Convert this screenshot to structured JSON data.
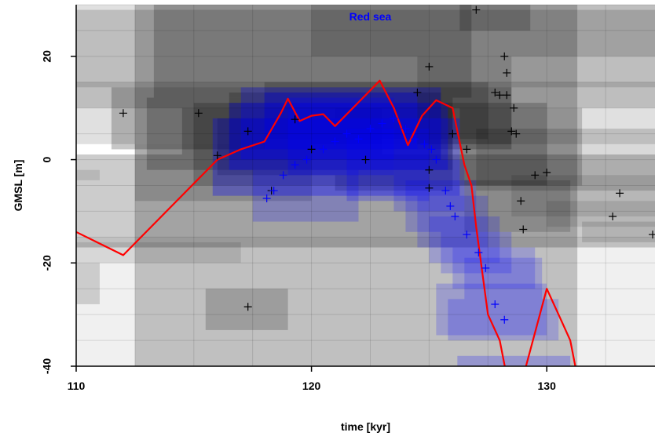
{
  "chart_data": {
    "type": "line",
    "title": "",
    "xlabel": "time [kyr]",
    "ylabel": "GMSL [m]",
    "xlim": [
      110,
      134.6
    ],
    "ylim": [
      -40,
      30
    ],
    "x_ticks": [
      110,
      120,
      130
    ],
    "y_ticks": [
      -40,
      -20,
      0,
      20
    ],
    "grid": true,
    "annotations": [
      {
        "text": "Red sea",
        "x": 122.5,
        "y": 27,
        "color": "#0000ff"
      }
    ],
    "series": [
      {
        "style": "line",
        "color": "#ff0000",
        "x": [
          110,
          112,
          116,
          117,
          118,
          118.7,
          119,
          119.5,
          120,
          120.5,
          121,
          122.3,
          122.9,
          123.5,
          124.1,
          124.7,
          125.3,
          126,
          126.5,
          126.8,
          127,
          127.5,
          128,
          128.3,
          129,
          130,
          130.5,
          131,
          131.3
        ],
        "y": [
          -14,
          -18.5,
          0,
          2,
          3.5,
          9,
          11.8,
          7.5,
          8.5,
          8.8,
          6.5,
          12.5,
          15.3,
          10,
          2.8,
          8.5,
          11.5,
          10,
          -1,
          -5,
          -13,
          -30,
          -35,
          -42,
          -42,
          -25,
          -30,
          -35,
          -42
        ]
      },
      {
        "style": "markers",
        "color": "#000000",
        "x": [
          112,
          115.2,
          116,
          117.3,
          118.3,
          119.3,
          120,
          122.3,
          124.5,
          125,
          125,
          125,
          126,
          126.6,
          127,
          127.8,
          128,
          128.2,
          128.3,
          128.3,
          128.5,
          128.6,
          128.7,
          128.9,
          129,
          129.5,
          130,
          132.8,
          133.1,
          134.5,
          117.3
        ],
        "y": [
          9,
          9,
          0.8,
          5.5,
          -6,
          7.8,
          2,
          0,
          13,
          18,
          -2,
          -5.5,
          5,
          2,
          29,
          13,
          12.5,
          20,
          16.8,
          12.5,
          5.5,
          10,
          5,
          -8,
          -13.5,
          -3,
          -2.5,
          -11,
          -6.5,
          -14.5,
          -28.5
        ]
      },
      {
        "style": "markers",
        "color": "#0000ff",
        "x": [
          118.1,
          118.4,
          118.8,
          119.3,
          119.8,
          120.5,
          121,
          121.5,
          122,
          122.5,
          123,
          123.5,
          124,
          124.4,
          124.8,
          125.1,
          125.3,
          125.7,
          125.9,
          126.1,
          126.6,
          127.1,
          127.4,
          127.8,
          128.2
        ],
        "y": [
          -7.5,
          -6,
          -3,
          -1,
          0,
          2,
          3.5,
          5,
          4,
          6,
          7,
          8,
          6,
          4,
          3,
          2,
          0,
          -6,
          -9,
          -11,
          -14.5,
          -18,
          -21,
          -28,
          -31
        ]
      }
    ]
  }
}
